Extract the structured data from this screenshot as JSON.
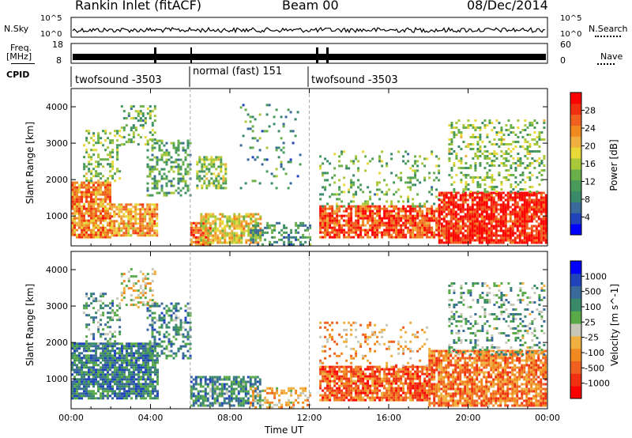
{
  "header": {
    "title": "Rankin Inlet (fitACF)",
    "beam": "Beam 00",
    "date": "08/Dec/2014"
  },
  "top_panels": {
    "nsky_label": "N.Sky",
    "nsky_ticks": [
      "10^5",
      "10^0"
    ],
    "nsearch_label": "N.Search",
    "nsearch_ticks": [
      "10^5",
      "10^0"
    ],
    "freq_label": "Freq.",
    "freq_unit": "[MHz]",
    "freq_ticks": [
      "18",
      "8"
    ],
    "nave_label": "Nave",
    "nave_ticks": [
      "60",
      "0"
    ],
    "cpid_label": "CPID",
    "cpid_segments": [
      "twofsound -3503",
      "normal (fast) 151",
      "twofsound -3503"
    ]
  },
  "chart_data": [
    {
      "type": "heatmap",
      "title": "",
      "xlabel": "",
      "ylabel": "Slant Range [km]",
      "x_ticks": [
        "00:00",
        "04:00",
        "08:00",
        "12:00",
        "16:00",
        "20:00",
        "00:00"
      ],
      "y_ticks": [
        "1000",
        "2000",
        "3000",
        "4000"
      ],
      "xlim": [
        0,
        24
      ],
      "ylim": [
        180,
        4500
      ],
      "colorbar": {
        "label": "Power [dB]",
        "ticks": [
          "28",
          "24",
          "20",
          "16",
          "12",
          "8",
          "4"
        ],
        "range": [
          0,
          30
        ],
        "colors": [
          "#0000ff",
          "#2244bb",
          "#3a6a9a",
          "#3a8a6a",
          "#4a9a5a",
          "#6ab04a",
          "#a8c83a",
          "#e8d838",
          "#f0b040",
          "#f08a20",
          "#f06020",
          "#f03010",
          "#ff0000"
        ]
      },
      "regions": [
        {
          "t": [
            0,
            2.0
          ],
          "r": [
            450,
            1950
          ],
          "level": 0.75,
          "density": 0.85
        },
        {
          "t": [
            2.0,
            4.3
          ],
          "r": [
            500,
            1400
          ],
          "level": 0.7,
          "density": 0.8
        },
        {
          "t": [
            0.6,
            2.5
          ],
          "r": [
            2000,
            3400
          ],
          "level": 0.45,
          "density": 0.35
        },
        {
          "t": [
            2.5,
            4.2
          ],
          "r": [
            3000,
            4100
          ],
          "level": 0.4,
          "density": 0.35
        },
        {
          "t": [
            3.8,
            6.0
          ],
          "r": [
            1600,
            3100
          ],
          "level": 0.35,
          "density": 0.45
        },
        {
          "t": [
            6.0,
            7.0
          ],
          "r": [
            250,
            900
          ],
          "level": 0.8,
          "density": 0.9
        },
        {
          "t": [
            6.3,
            7.8
          ],
          "r": [
            1800,
            2700
          ],
          "level": 0.45,
          "density": 0.6
        },
        {
          "t": [
            6.5,
            9.5
          ],
          "r": [
            300,
            1100
          ],
          "level": 0.6,
          "density": 0.75
        },
        {
          "t": [
            9.0,
            12.0
          ],
          "r": [
            250,
            900
          ],
          "level": 0.3,
          "density": 0.35
        },
        {
          "t": [
            8.5,
            11.5
          ],
          "r": [
            1800,
            4100
          ],
          "level": 0.3,
          "density": 0.08
        },
        {
          "t": [
            12.5,
            18.5
          ],
          "r": [
            450,
            1300
          ],
          "level": 0.85,
          "density": 0.8
        },
        {
          "t": [
            12.5,
            18.5
          ],
          "r": [
            1300,
            2800
          ],
          "level": 0.4,
          "density": 0.2
        },
        {
          "t": [
            18.5,
            24.0
          ],
          "r": [
            300,
            1700
          ],
          "level": 0.92,
          "density": 0.85
        },
        {
          "t": [
            19.0,
            23.8
          ],
          "r": [
            1700,
            3700
          ],
          "level": 0.45,
          "density": 0.3
        }
      ]
    },
    {
      "type": "heatmap",
      "title": "",
      "xlabel": "Time UT",
      "ylabel": "Slant Range [km]",
      "x_ticks": [
        "00:00",
        "04:00",
        "08:00",
        "12:00",
        "16:00",
        "20:00",
        "00:00"
      ],
      "y_ticks": [
        "1000",
        "2000",
        "3000",
        "4000"
      ],
      "xlim": [
        0,
        24
      ],
      "ylim": [
        180,
        4500
      ],
      "colorbar": {
        "label": "Velocity [m s^-1]",
        "ticks": [
          "1000",
          "500",
          "100",
          "25",
          "-25",
          "-100",
          "-500",
          "-1000"
        ],
        "range": [
          -1000,
          1000
        ],
        "colors": [
          "#ff0000",
          "#f03010",
          "#f06020",
          "#f08a20",
          "#f0b040",
          "#c8c8b8",
          "#5aaa4a",
          "#3a8a6a",
          "#3a6a9a",
          "#2244bb",
          "#0000ff"
        ]
      },
      "regions": [
        {
          "t": [
            0,
            4.3
          ],
          "r": [
            500,
            2000
          ],
          "level": 0.72,
          "density": 0.85
        },
        {
          "t": [
            0.6,
            2.5
          ],
          "r": [
            2000,
            3400
          ],
          "level": 0.65,
          "density": 0.3
        },
        {
          "t": [
            2.5,
            4.2
          ],
          "r": [
            3000,
            4100
          ],
          "level": 0.45,
          "density": 0.3
        },
        {
          "t": [
            3.8,
            6.0
          ],
          "r": [
            1600,
            3100
          ],
          "level": 0.7,
          "density": 0.45
        },
        {
          "t": [
            6.0,
            9.5
          ],
          "r": [
            300,
            1100
          ],
          "level": 0.7,
          "density": 0.7
        },
        {
          "t": [
            9.0,
            12.0
          ],
          "r": [
            250,
            800
          ],
          "level": 0.4,
          "density": 0.35
        },
        {
          "t": [
            12.5,
            18.0
          ],
          "r": [
            450,
            1400
          ],
          "level": 0.22,
          "density": 0.8
        },
        {
          "t": [
            12.5,
            18.0
          ],
          "r": [
            1400,
            2600
          ],
          "level": 0.35,
          "density": 0.2
        },
        {
          "t": [
            18.0,
            24.0
          ],
          "r": [
            300,
            1800
          ],
          "level": 0.28,
          "density": 0.8
        },
        {
          "t": [
            19.0,
            23.8
          ],
          "r": [
            1700,
            3700
          ],
          "level": 0.62,
          "density": 0.25
        }
      ]
    }
  ]
}
